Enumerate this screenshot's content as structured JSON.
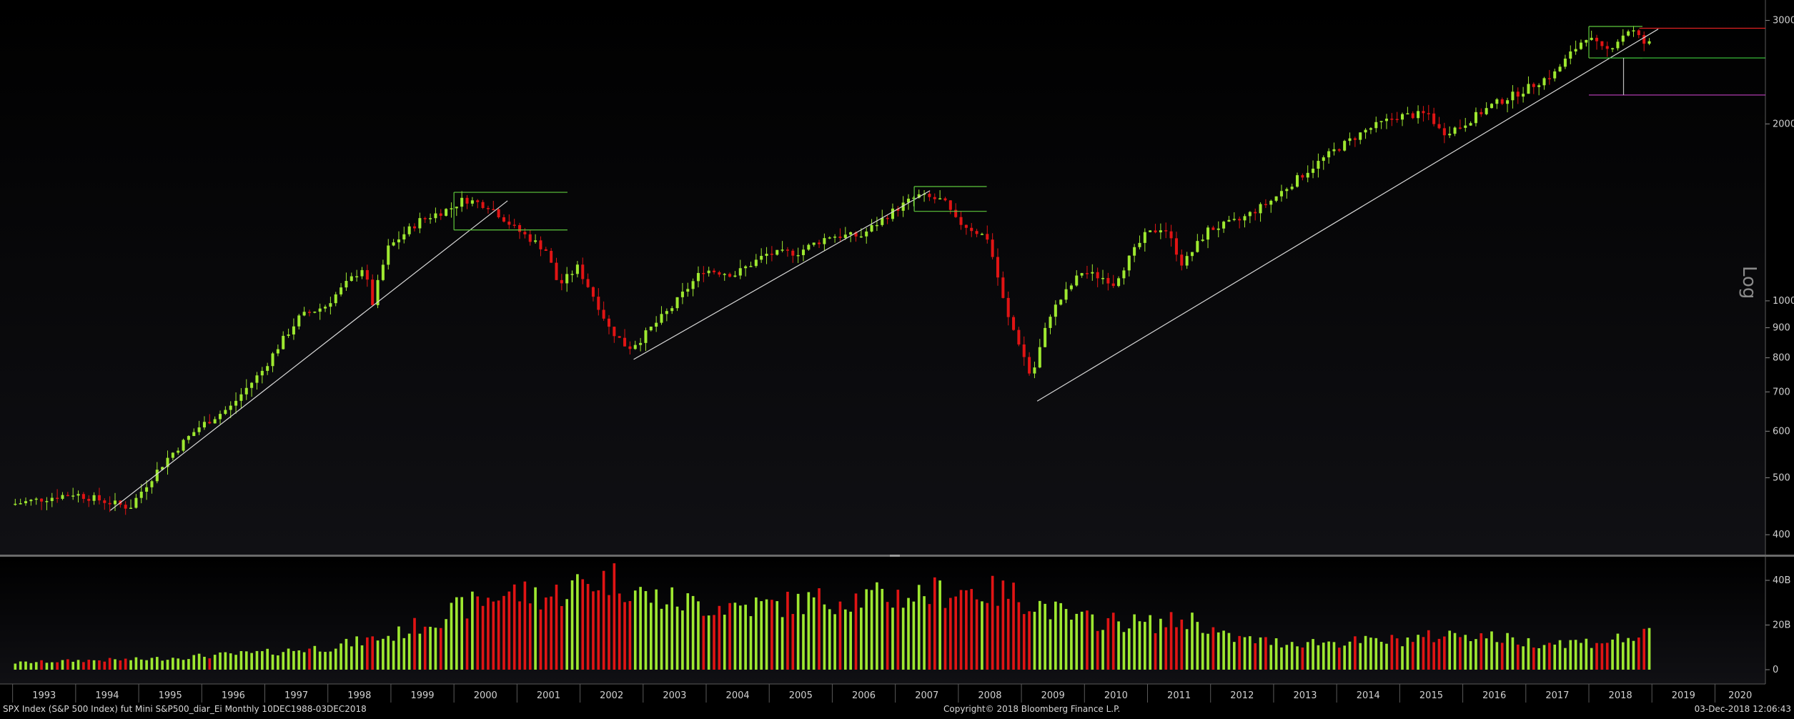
{
  "footer": {
    "left": "SPX Index (S&P 500 Index) fut Mini S&P500_diar_Ei  Monthly 10DEC1988-03DEC2018",
    "center": "Copyright© 2018 Bloomberg Finance L.P.",
    "right": "03-Dec-2018 12:06:43"
  },
  "scale_label": "Log",
  "colors": {
    "up": "#9ee830",
    "down": "#e01414",
    "trendline": "#d8d8d8",
    "box_green": "#5ec83c",
    "level_red": "#e02222",
    "level_green": "#3ecc3e",
    "level_magenta": "#c040c0",
    "axis_text": "#d0d0d0"
  },
  "chart_data": {
    "type": "candlestick",
    "price_scale": "log",
    "x_range": [
      1993.0,
      2020.8
    ],
    "y_range": [
      370,
      3250
    ],
    "y_ticks": [
      400,
      500,
      600,
      700,
      800,
      900,
      1000,
      2000,
      3000
    ],
    "x_labels": [
      "1993",
      "1994",
      "1995",
      "1996",
      "1997",
      "1998",
      "1999",
      "2000",
      "2001",
      "2002",
      "2003",
      "2004",
      "2005",
      "2006",
      "2007",
      "2008",
      "2009",
      "2010",
      "2011",
      "2012",
      "2013",
      "2014",
      "2015",
      "2016",
      "2017",
      "2018",
      "2019",
      "2020"
    ],
    "price_anchors": [
      [
        1993.0,
        450
      ],
      [
        1994.0,
        470
      ],
      [
        1994.9,
        445
      ],
      [
        1995.5,
        540
      ],
      [
        1996.0,
        610
      ],
      [
        1996.5,
        660
      ],
      [
        1997.0,
        760
      ],
      [
        1997.6,
        940
      ],
      [
        1998.0,
        980
      ],
      [
        1998.6,
        1140
      ],
      [
        1998.75,
        990
      ],
      [
        1999.0,
        1230
      ],
      [
        1999.5,
        1370
      ],
      [
        2000.0,
        1440
      ],
      [
        2000.2,
        1490
      ],
      [
        2000.6,
        1450
      ],
      [
        2001.0,
        1330
      ],
      [
        2001.5,
        1220
      ],
      [
        2001.7,
        1060
      ],
      [
        2002.0,
        1140
      ],
      [
        2002.5,
        900
      ],
      [
        2002.8,
        830
      ],
      [
        2003.0,
        860
      ],
      [
        2003.5,
        975
      ],
      [
        2004.0,
        1130
      ],
      [
        2004.5,
        1110
      ],
      [
        2005.0,
        1200
      ],
      [
        2005.5,
        1210
      ],
      [
        2006.0,
        1290
      ],
      [
        2006.5,
        1290
      ],
      [
        2007.0,
        1420
      ],
      [
        2007.4,
        1510
      ],
      [
        2007.8,
        1480
      ],
      [
        2008.0,
        1370
      ],
      [
        2008.5,
        1280
      ],
      [
        2008.8,
        950
      ],
      [
        2009.0,
        850
      ],
      [
        2009.2,
        735
      ],
      [
        2009.5,
        950
      ],
      [
        2010.0,
        1120
      ],
      [
        2010.4,
        1090
      ],
      [
        2010.5,
        1070
      ],
      [
        2011.0,
        1290
      ],
      [
        2011.3,
        1340
      ],
      [
        2011.6,
        1150
      ],
      [
        2012.0,
        1320
      ],
      [
        2012.5,
        1370
      ],
      [
        2013.0,
        1480
      ],
      [
        2013.5,
        1640
      ],
      [
        2014.0,
        1800
      ],
      [
        2014.5,
        1950
      ],
      [
        2015.0,
        2060
      ],
      [
        2015.5,
        2080
      ],
      [
        2015.7,
        1930
      ],
      [
        2016.0,
        1980
      ],
      [
        2016.5,
        2150
      ],
      [
        2017.0,
        2280
      ],
      [
        2017.5,
        2440
      ],
      [
        2018.0,
        2820
      ],
      [
        2018.3,
        2650
      ],
      [
        2018.7,
        2910
      ],
      [
        2018.92,
        2740
      ]
    ],
    "volume_axis": {
      "ticks": [
        "0",
        "20B",
        "40B"
      ],
      "range_B": [
        0,
        48
      ]
    },
    "volume_anchors": [
      [
        1993.0,
        3
      ],
      [
        1994.0,
        4
      ],
      [
        1995.0,
        4.5
      ],
      [
        1996.0,
        6
      ],
      [
        1997.0,
        7.5
      ],
      [
        1998.0,
        10
      ],
      [
        1999.0,
        15
      ],
      [
        2000.0,
        26
      ],
      [
        2000.8,
        34
      ],
      [
        2001.5,
        32
      ],
      [
        2002.0,
        38
      ],
      [
        2002.5,
        40
      ],
      [
        2003.0,
        32
      ],
      [
        2004.0,
        28
      ],
      [
        2005.0,
        28
      ],
      [
        2006.0,
        31
      ],
      [
        2007.0,
        32
      ],
      [
        2008.0,
        35
      ],
      [
        2008.8,
        33
      ],
      [
        2009.2,
        29
      ],
      [
        2009.8,
        22
      ],
      [
        2010.5,
        21
      ],
      [
        2011.0,
        20
      ],
      [
        2011.7,
        22
      ],
      [
        2012.2,
        14
      ],
      [
        2013.0,
        12
      ],
      [
        2014.0,
        12
      ],
      [
        2015.0,
        13
      ],
      [
        2016.0,
        16
      ],
      [
        2017.0,
        12
      ],
      [
        2018.0,
        12
      ],
      [
        2018.92,
        15
      ]
    ],
    "trendlines": [
      {
        "from": [
          1994.55,
          440
        ],
        "to": [
          2000.85,
          1480
        ]
      },
      {
        "from": [
          2002.85,
          795
        ],
        "to": [
          2007.55,
          1540
        ]
      },
      {
        "from": [
          2009.25,
          675
        ],
        "to": [
          2019.1,
          2900
        ]
      }
    ],
    "boxes": [
      {
        "x": [
          2000.0,
          2001.8
        ],
        "y": [
          1320,
          1530
        ]
      },
      {
        "x": [
          2007.3,
          2008.45
        ],
        "y": [
          1420,
          1565
        ]
      },
      {
        "x": [
          2018.0,
          2018.85
        ],
        "y": [
          2590,
          2930
        ]
      }
    ],
    "levels": [
      {
        "x": [
          2018.8,
          2020.8
        ],
        "y": 2910,
        "color": "red"
      },
      {
        "x": [
          2018.1,
          2020.8
        ],
        "y": 2590,
        "color": "green"
      },
      {
        "x": [
          2018.0,
          2020.8
        ],
        "y": 2240,
        "color": "magenta"
      }
    ]
  }
}
